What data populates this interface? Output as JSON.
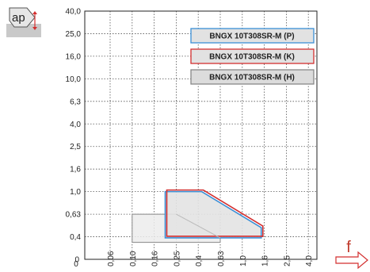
{
  "chart_data": {
    "type": "area",
    "y_ticks": [
      "40,0",
      "25,0",
      "16,0",
      "10,0",
      "6,3",
      "4,0",
      "2,5",
      "1,6",
      "1,0",
      "0,63",
      "0,4",
      "0"
    ],
    "x_ticks": [
      "0,06",
      "0,10",
      "0,16",
      "0,25",
      "0,4",
      "0,63",
      "1,0",
      "1,6",
      "2,5",
      "4,0"
    ],
    "x_origin_label": "0",
    "y_label": "ap",
    "x_label": "f",
    "grid": true,
    "series": [
      {
        "name": "BNGX 10T308SR-M (P)",
        "color": "#3b8fd6",
        "fill": "#e3e3e3",
        "polygon": [
          [
            0.2,
            1.0
          ],
          [
            0.43,
            1.0
          ],
          [
            1.5,
            0.48
          ],
          [
            1.5,
            0.38
          ],
          [
            0.2,
            0.38
          ]
        ]
      },
      {
        "name": "BNGX 10T308SR-M (K)",
        "color": "#d32f2f",
        "fill": "#e3e3e3",
        "polygon": [
          [
            0.2,
            1.0
          ],
          [
            0.43,
            1.0
          ],
          [
            1.5,
            0.48
          ],
          [
            1.5,
            0.38
          ],
          [
            0.2,
            0.38
          ]
        ]
      },
      {
        "name": "BNGX 10T308SR-M (H)",
        "color": "#888888",
        "fill": "#ececec",
        "polygon": [
          [
            0.1,
            0.63
          ],
          [
            0.25,
            0.63
          ],
          [
            0.63,
            0.38
          ],
          [
            0.63,
            0.3
          ],
          [
            0.1,
            0.3
          ]
        ]
      }
    ]
  }
}
